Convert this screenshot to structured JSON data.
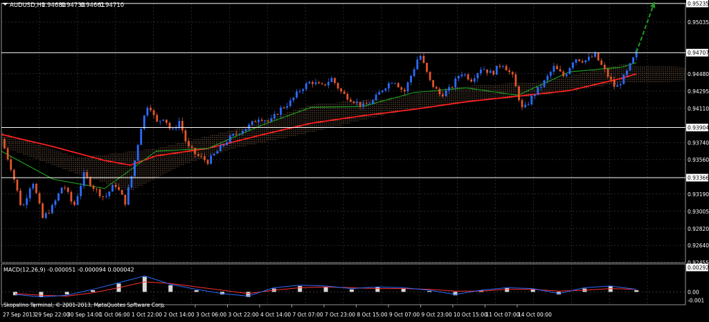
{
  "chart_data": [
    {
      "type": "candlestick",
      "title": "AUDUSD,H1",
      "quote": {
        "symbol": "AUDUSD,H1",
        "values": [
          "0.94680",
          "0.94730",
          "0.94661",
          "0.94710"
        ]
      },
      "ylim": [
        0.92455,
        0.95235
      ],
      "y_ticks": [
        "0.95235",
        "0.95035",
        "0.94707",
        "0.94480",
        "0.94295",
        "0.94110",
        "0.93904",
        "0.93740",
        "0.93560",
        "0.93366",
        "0.93190",
        "0.93005",
        "0.92820",
        "0.92640",
        "0.92455"
      ],
      "x_ticks": [
        "27 Sep 2013",
        "29 Sep 22:00",
        "30 Sep 14:00",
        "1 Oct 06:00",
        "1 Oct 22:00",
        "2 Oct 14:00",
        "3 Oct 06:00",
        "3 Oct 22:00",
        "4 Oct 14:00",
        "7 Oct 07:00",
        "7 Oct 23:00",
        "8 Oct 15:00",
        "9 Oct 07:00",
        "9 Oct 23:00",
        "10 Oct 15:00",
        "11 Oct 07:00",
        "14 Oct 00:00"
      ],
      "horizontal_levels": [
        {
          "label": "0.95235",
          "value": 0.95235,
          "color": "#ffffff"
        },
        {
          "label": "0.94707",
          "value": 0.94707,
          "color": "#ffffff"
        },
        {
          "label": "0.93904",
          "value": 0.93904,
          "color": "#ffffff"
        },
        {
          "label": "0.93366",
          "value": 0.93366,
          "color": "#ffffff"
        }
      ],
      "price_path": [
        {
          "t": 0,
          "p": 0.9378
        },
        {
          "t": 0.4,
          "p": 0.9345
        },
        {
          "t": 0.8,
          "p": 0.9302
        },
        {
          "t": 1.2,
          "p": 0.9335
        },
        {
          "t": 1.6,
          "p": 0.9293
        },
        {
          "t": 2.0,
          "p": 0.9306
        },
        {
          "t": 2.4,
          "p": 0.933
        },
        {
          "t": 2.8,
          "p": 0.9305
        },
        {
          "t": 3.2,
          "p": 0.934
        },
        {
          "t": 3.6,
          "p": 0.9325
        },
        {
          "t": 4.0,
          "p": 0.9315
        },
        {
          "t": 4.4,
          "p": 0.933
        },
        {
          "t": 4.8,
          "p": 0.931
        },
        {
          "t": 5.1,
          "p": 0.9345
        },
        {
          "t": 5.4,
          "p": 0.939
        },
        {
          "t": 5.7,
          "p": 0.9418
        },
        {
          "t": 6.0,
          "p": 0.9395
        },
        {
          "t": 6.3,
          "p": 0.9402
        },
        {
          "t": 6.6,
          "p": 0.9385
        },
        {
          "t": 6.9,
          "p": 0.9398
        },
        {
          "t": 7.2,
          "p": 0.937
        },
        {
          "t": 7.6,
          "p": 0.936
        },
        {
          "t": 8.0,
          "p": 0.9354
        },
        {
          "t": 8.4,
          "p": 0.9366
        },
        {
          "t": 8.8,
          "p": 0.9378
        },
        {
          "t": 9.2,
          "p": 0.9386
        },
        {
          "t": 9.6,
          "p": 0.9392
        },
        {
          "t": 10.0,
          "p": 0.9402
        },
        {
          "t": 10.4,
          "p": 0.9396
        },
        {
          "t": 10.8,
          "p": 0.941
        },
        {
          "t": 11.2,
          "p": 0.9418
        },
        {
          "t": 11.6,
          "p": 0.9432
        },
        {
          "t": 12.0,
          "p": 0.944
        },
        {
          "t": 12.4,
          "p": 0.9434
        },
        {
          "t": 12.8,
          "p": 0.9443
        },
        {
          "t": 13.2,
          "p": 0.9427
        },
        {
          "t": 13.6,
          "p": 0.942
        },
        {
          "t": 14.0,
          "p": 0.9413
        },
        {
          "t": 14.4,
          "p": 0.9419
        },
        {
          "t": 14.8,
          "p": 0.9433
        },
        {
          "t": 15.2,
          "p": 0.9442
        },
        {
          "t": 15.6,
          "p": 0.9428
        },
        {
          "t": 16.0,
          "p": 0.9455
        },
        {
          "t": 16.2,
          "p": 0.947
        },
        {
          "t": 16.6,
          "p": 0.944
        },
        {
          "t": 17.0,
          "p": 0.9425
        },
        {
          "t": 17.4,
          "p": 0.9432
        },
        {
          "t": 17.8,
          "p": 0.945
        },
        {
          "t": 18.2,
          "p": 0.9442
        },
        {
          "t": 18.6,
          "p": 0.9455
        },
        {
          "t": 19.0,
          "p": 0.9448
        },
        {
          "t": 19.4,
          "p": 0.946
        },
        {
          "t": 19.8,
          "p": 0.9445
        },
        {
          "t": 20.2,
          "p": 0.9408
        },
        {
          "t": 20.6,
          "p": 0.9425
        },
        {
          "t": 21.0,
          "p": 0.9438
        },
        {
          "t": 21.4,
          "p": 0.9455
        },
        {
          "t": 21.8,
          "p": 0.9445
        },
        {
          "t": 22.2,
          "p": 0.9465
        },
        {
          "t": 22.6,
          "p": 0.9462
        },
        {
          "t": 23.0,
          "p": 0.9468
        },
        {
          "t": 23.4,
          "p": 0.945
        },
        {
          "t": 23.8,
          "p": 0.9432
        },
        {
          "t": 24.2,
          "p": 0.9448
        },
        {
          "t": 24.6,
          "p": 0.9471
        }
      ],
      "series": [
        {
          "name": "MA red",
          "color": "#ff2020",
          "points": [
            {
              "t": 0,
              "p": 0.9383
            },
            {
              "t": 2,
              "p": 0.937
            },
            {
              "t": 4,
              "p": 0.9355
            },
            {
              "t": 5,
              "p": 0.935
            },
            {
              "t": 6,
              "p": 0.936
            },
            {
              "t": 8,
              "p": 0.9368
            },
            {
              "t": 10,
              "p": 0.9382
            },
            {
              "t": 12,
              "p": 0.9395
            },
            {
              "t": 14,
              "p": 0.9403
            },
            {
              "t": 16,
              "p": 0.941
            },
            {
              "t": 18,
              "p": 0.9418
            },
            {
              "t": 20,
              "p": 0.9424
            },
            {
              "t": 22,
              "p": 0.943
            },
            {
              "t": 24,
              "p": 0.9443
            },
            {
              "t": 24.6,
              "p": 0.9448
            }
          ]
        },
        {
          "name": "MA green",
          "color": "#1e9a1e",
          "points": [
            {
              "t": 0,
              "p": 0.9365
            },
            {
              "t": 2,
              "p": 0.9335
            },
            {
              "t": 4,
              "p": 0.9325
            },
            {
              "t": 5,
              "p": 0.9345
            },
            {
              "t": 6,
              "p": 0.9365
            },
            {
              "t": 8,
              "p": 0.9368
            },
            {
              "t": 10,
              "p": 0.9392
            },
            {
              "t": 12,
              "p": 0.9412
            },
            {
              "t": 14,
              "p": 0.9413
            },
            {
              "t": 16,
              "p": 0.9428
            },
            {
              "t": 18,
              "p": 0.9433
            },
            {
              "t": 20,
              "p": 0.9425
            },
            {
              "t": 22,
              "p": 0.945
            },
            {
              "t": 24,
              "p": 0.9455
            },
            {
              "t": 24.6,
              "p": 0.946
            }
          ]
        }
      ],
      "ichimoku_cloud": {
        "color": "#f2b98a",
        "upper": [
          {
            "t": 0,
            "p": 0.9385
          },
          {
            "t": 3,
            "p": 0.9358
          },
          {
            "t": 6,
            "p": 0.9368
          },
          {
            "t": 9,
            "p": 0.9388
          },
          {
            "t": 12,
            "p": 0.9415
          },
          {
            "t": 15,
            "p": 0.9422
          },
          {
            "t": 18,
            "p": 0.9435
          },
          {
            "t": 21,
            "p": 0.944
          },
          {
            "t": 24,
            "p": 0.9458
          },
          {
            "t": 26.5,
            "p": 0.9455
          }
        ],
        "lower": [
          {
            "t": 0,
            "p": 0.937
          },
          {
            "t": 3,
            "p": 0.934
          },
          {
            "t": 5,
            "p": 0.9322
          },
          {
            "t": 7,
            "p": 0.935
          },
          {
            "t": 9,
            "p": 0.9368
          },
          {
            "t": 12,
            "p": 0.9385
          },
          {
            "t": 15,
            "p": 0.9405
          },
          {
            "t": 18,
            "p": 0.9418
          },
          {
            "t": 21,
            "p": 0.9425
          },
          {
            "t": 24,
            "p": 0.9438
          },
          {
            "t": 26.5,
            "p": 0.944
          }
        ]
      },
      "arrow": {
        "color": "#1e9a1e",
        "from": {
          "t": 24.6,
          "p": 0.9471
        },
        "to": {
          "t": 25.3,
          "p": 0.9525
        }
      },
      "legend_placement": "none",
      "grid": true
    },
    {
      "type": "line",
      "title": "MACD(12,26,9) -0.000051 -0.000094 0.000042",
      "indicator": {
        "name": "MACD(12,26,9)",
        "values": [
          "-0.000051",
          "-0.000094",
          "0.000042"
        ]
      },
      "ylim": [
        -0.0012,
        0.002921
      ],
      "y_ticks": [
        "0.002921",
        "0.00",
        "-0.001"
      ],
      "series": [
        {
          "name": "histogram",
          "type": "bar",
          "color": "#d8d8d8",
          "values": [
            -0.0004,
            -0.0006,
            -0.0003,
            0.0002,
            0.001,
            0.0018,
            0.0008,
            0.0002,
            -0.0003,
            -0.0006,
            0.0004,
            0.0007,
            0.0006,
            0.0003,
            0.0006,
            0.0004,
            0.0001,
            -0.0004,
            0.0002,
            0.0005,
            0.0003,
            -0.0003,
            0.0004,
            0.0007,
            0.0002
          ]
        },
        {
          "name": "signal red",
          "type": "line",
          "color": "#ff3030",
          "values": [
            -0.0002,
            -0.0004,
            -0.0005,
            -0.0001,
            0.0005,
            0.0012,
            0.001,
            0.0006,
            0.0002,
            -0.0002,
            0.0002,
            0.0005,
            0.0006,
            0.0005,
            0.0004,
            0.0004,
            0.0003,
            0.0001,
            0.0001,
            0.0003,
            0.0003,
            0.0001,
            0.0002,
            0.0004,
            0.0003
          ]
        },
        {
          "name": "macd blue",
          "type": "line",
          "color": "#2a6cff",
          "values": [
            -0.0003,
            -0.0006,
            -0.0004,
            0.0003,
            0.0011,
            0.0019,
            0.0009,
            0.0003,
            -0.0002,
            -0.0005,
            0.0005,
            0.0008,
            0.0007,
            0.0004,
            0.0006,
            0.0005,
            0.0002,
            -0.0003,
            0.0002,
            0.0005,
            0.0004,
            -0.0002,
            0.0005,
            0.0007,
            0.0003
          ]
        }
      ]
    }
  ],
  "footer": {
    "copyright": "Skopalino Terminal, © 2001-2013, MetaQuotes Software Corp."
  },
  "colors": {
    "background": "#000000",
    "axis": "#ffffff",
    "grid": "#444444",
    "bull": "#2a6cff",
    "bear": "#e2562a"
  }
}
